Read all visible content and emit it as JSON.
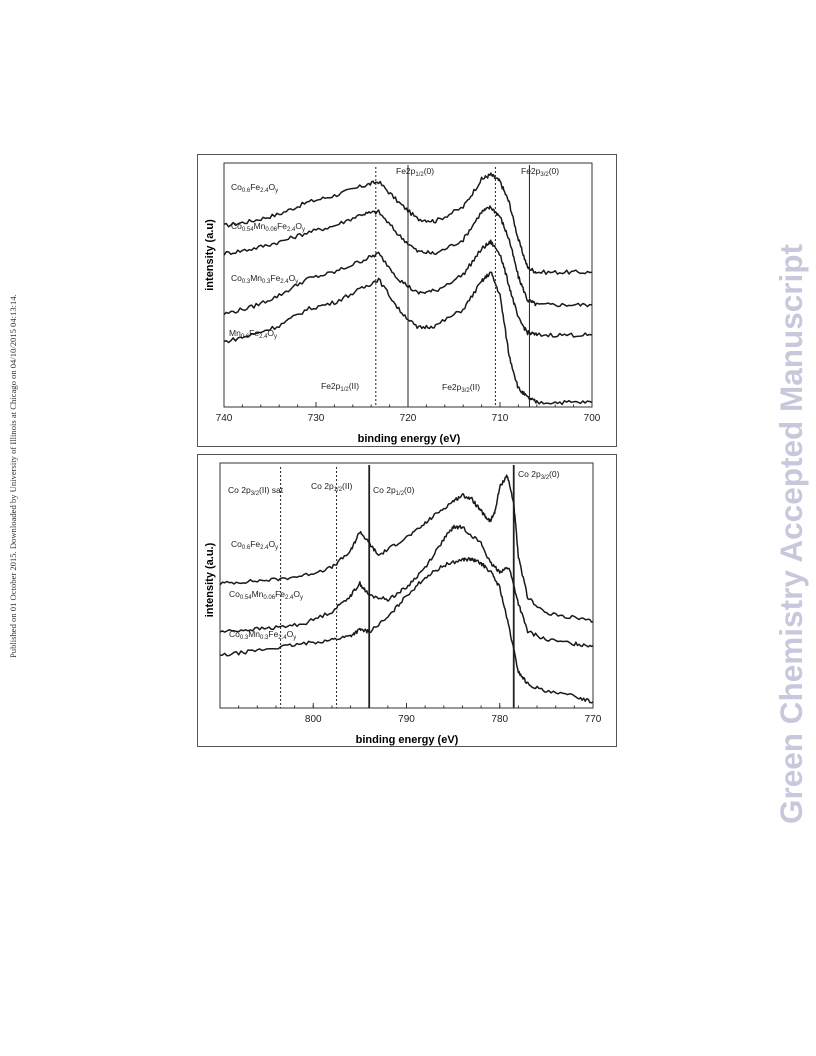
{
  "margin_note": "Published on 01 October 2015. Downloaded by University of Illinois at Chicago on 04/10/2015 04:13:14.",
  "watermark": "Green Chemistry Accepted Manuscript",
  "chart_data": [
    {
      "type": "line",
      "xlabel": "binding energy (eV)",
      "ylabel": "intensity (a.u)",
      "xlim": [
        740,
        700
      ],
      "x_reversed": true,
      "xticks": [
        "740",
        "730",
        "720",
        "710",
        "700"
      ],
      "grid": false,
      "series": [
        {
          "name": "Co0.6Fe2.4Oy",
          "x": [
            740,
            737,
            734,
            731,
            728,
            725,
            723.2,
            721,
            719,
            717,
            714,
            712,
            711,
            710,
            709,
            708,
            707,
            706,
            703,
            700
          ],
          "y": [
            0.78,
            0.8,
            0.83,
            0.88,
            0.91,
            0.95,
            0.97,
            0.88,
            0.81,
            0.8,
            0.86,
            0.98,
            1.0,
            0.97,
            0.88,
            0.72,
            0.6,
            0.58,
            0.58,
            0.58
          ]
        },
        {
          "name": "Co0.54Mn0.06Fe2.4Oy",
          "x": [
            740,
            737,
            734,
            731,
            728,
            725,
            723.2,
            721,
            719,
            717,
            714,
            712,
            711,
            710,
            709,
            708,
            707,
            706,
            703,
            700
          ],
          "y": [
            0.66,
            0.68,
            0.71,
            0.75,
            0.78,
            0.83,
            0.84,
            0.74,
            0.67,
            0.66,
            0.72,
            0.84,
            0.86,
            0.82,
            0.72,
            0.56,
            0.46,
            0.44,
            0.44,
            0.44
          ]
        },
        {
          "name": "Co0.3Mn0.3Fe2.4Oy",
          "x": [
            740,
            737,
            734,
            731,
            728,
            725,
            723.2,
            721,
            719,
            717,
            714,
            712,
            711,
            710,
            709,
            708,
            707,
            706,
            703,
            700
          ],
          "y": [
            0.4,
            0.43,
            0.48,
            0.55,
            0.58,
            0.63,
            0.66,
            0.55,
            0.49,
            0.5,
            0.57,
            0.68,
            0.71,
            0.66,
            0.52,
            0.38,
            0.32,
            0.31,
            0.31,
            0.31
          ]
        },
        {
          "name": "Mn0.6Fe2.4Oy",
          "x": [
            740,
            737,
            734,
            731,
            728,
            725,
            723.2,
            721,
            719,
            717,
            714,
            712,
            711,
            710,
            709,
            708,
            707,
            706,
            703,
            700
          ],
          "y": [
            0.28,
            0.31,
            0.35,
            0.42,
            0.45,
            0.51,
            0.55,
            0.42,
            0.34,
            0.35,
            0.42,
            0.54,
            0.58,
            0.48,
            0.22,
            0.08,
            0.04,
            0.02,
            0.02,
            0.02
          ]
        }
      ],
      "reference_lines": [
        {
          "label": "Fe2p1/2(0)",
          "x": 720,
          "style": "solid"
        },
        {
          "label": "Fe2p3/2(0)",
          "x": 706.8,
          "style": "solid"
        },
        {
          "label": "Fe2p1/2(II)",
          "x": 723.5,
          "style": "dotted"
        },
        {
          "label": "Fe2p3/2(II)",
          "x": 710.5,
          "style": "dotted"
        }
      ]
    },
    {
      "type": "line",
      "xlabel": "binding energy (eV)",
      "ylabel": "intensity (a.u.)",
      "xlim": [
        810,
        770
      ],
      "x_reversed": true,
      "xticks": [
        "800",
        "790",
        "780",
        "770"
      ],
      "grid": false,
      "series": [
        {
          "name": "Co0.6Fe2.4Oy",
          "x": [
            810,
            807,
            804,
            801,
            798,
            796,
            795,
            794,
            793,
            791,
            789,
            787,
            785,
            784,
            783,
            782,
            781.5,
            781,
            780.5,
            780,
            779.2,
            778.5,
            778,
            777,
            775,
            772,
            770
          ],
          "y": [
            0.62,
            0.63,
            0.64,
            0.66,
            0.7,
            0.78,
            0.88,
            0.82,
            0.76,
            0.82,
            0.88,
            0.96,
            1.03,
            1.06,
            1.04,
            0.98,
            0.95,
            0.93,
            0.98,
            1.1,
            1.16,
            1.02,
            0.75,
            0.55,
            0.47,
            0.45,
            0.43
          ]
        },
        {
          "name": "Co0.54Mn0.06Fe2.4Oy",
          "x": [
            810,
            807,
            804,
            801,
            798,
            796,
            795,
            794,
            792,
            790,
            788,
            786,
            785,
            784,
            782,
            781,
            780,
            779,
            778,
            777,
            775,
            772,
            770
          ],
          "y": [
            0.38,
            0.39,
            0.4,
            0.42,
            0.48,
            0.56,
            0.62,
            0.56,
            0.54,
            0.6,
            0.7,
            0.84,
            0.9,
            0.9,
            0.82,
            0.72,
            0.68,
            0.7,
            0.52,
            0.38,
            0.34,
            0.32,
            0.31
          ]
        },
        {
          "name": "Co0.3Mn0.3Fe2.4Oy",
          "x": [
            810,
            807,
            804,
            801,
            798,
            796,
            795,
            794,
            792,
            790,
            788,
            786,
            784,
            783,
            782,
            781,
            780,
            779,
            778,
            777,
            775,
            772,
            770
          ],
          "y": [
            0.26,
            0.28,
            0.3,
            0.32,
            0.34,
            0.36,
            0.39,
            0.38,
            0.45,
            0.56,
            0.65,
            0.71,
            0.74,
            0.74,
            0.72,
            0.68,
            0.6,
            0.4,
            0.18,
            0.12,
            0.08,
            0.06,
            0.03
          ]
        }
      ],
      "reference_lines": [
        {
          "label": "Co 2p3/2(II) sat",
          "x": 803.5,
          "style": "dotted"
        },
        {
          "label": "Co 2p1/2(II)",
          "x": 797.5,
          "style": "dotted"
        },
        {
          "label": "Co 2p1/2(0)",
          "x": 794,
          "style": "solid"
        },
        {
          "label": "Co 2p3/2(0)",
          "x": 778.5,
          "style": "solid"
        }
      ]
    }
  ]
}
